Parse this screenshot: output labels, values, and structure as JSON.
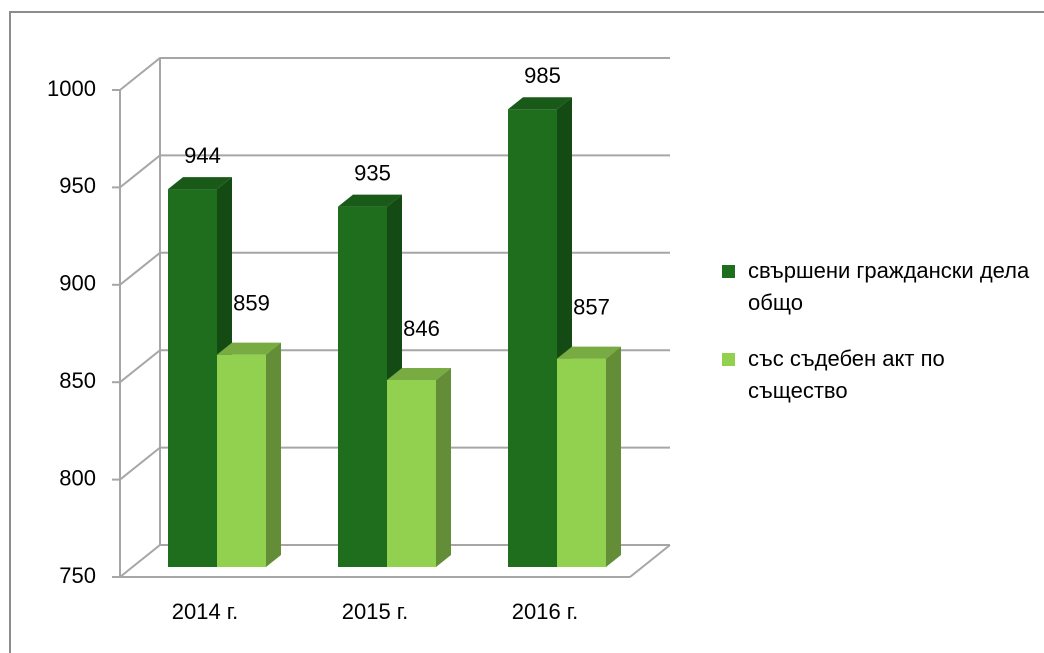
{
  "chart_data": {
    "type": "bar3d",
    "categories": [
      "2014 г.",
      "2015 г.",
      "2016 г."
    ],
    "series": [
      {
        "name": "свършени граждански дела общо",
        "color": "#1e6e1e",
        "values": [
          944,
          935,
          985
        ]
      },
      {
        "name": "със съдебен акт по същество",
        "color": "#92d050",
        "values": [
          859,
          846,
          857
        ]
      }
    ],
    "ylim": [
      750,
      1000
    ],
    "yticks": [
      750,
      800,
      850,
      900,
      950,
      1000
    ],
    "grid": true,
    "legend": "right"
  }
}
